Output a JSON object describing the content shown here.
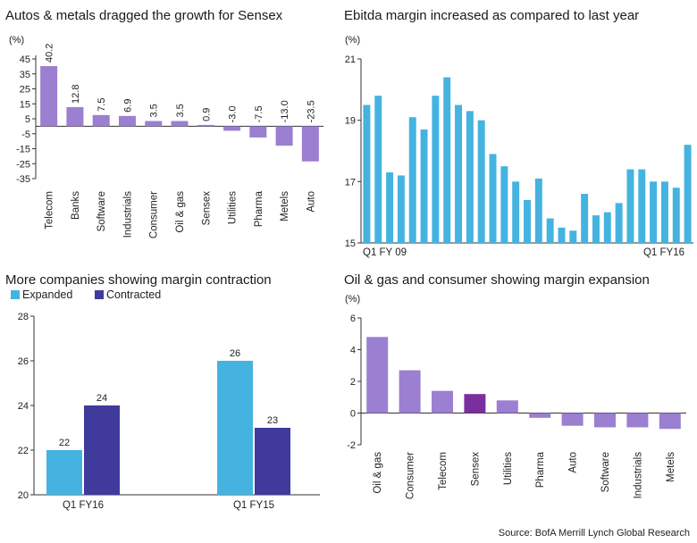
{
  "chart_data": [
    {
      "type": "bar",
      "title": "Autos & metals dragged the growth for Sensex",
      "ylabel": "(%)",
      "ylim": [
        -35,
        45
      ],
      "yticks": [
        45,
        35,
        25,
        15,
        5,
        -5,
        -15,
        -25,
        -35
      ],
      "categories": [
        "Telecom",
        "Banks",
        "Software",
        "Industrials",
        "Consumer",
        "Oil & gas",
        "Sensex",
        "Utilities",
        "Pharma",
        "Metels",
        "Auto"
      ],
      "values": [
        40.2,
        12.8,
        7.5,
        6.9,
        3.5,
        3.5,
        0.9,
        -3.0,
        -7.5,
        -13.0,
        -23.5
      ],
      "data_labels": [
        "40.2",
        "12.8",
        "7.5",
        "6.9",
        "3.5",
        "3.5",
        "0.9",
        "-3.0",
        "-7.5",
        "-13.0",
        "-23.5"
      ],
      "color": "#9b7fd1"
    },
    {
      "type": "bar",
      "title": "Ebitda margin increased as compared to last year",
      "ylabel": "(%)",
      "ylim": [
        15,
        21
      ],
      "yticks": [
        21,
        19,
        17,
        15
      ],
      "x_labels": [
        "Q1 FY 09",
        "Q1 FY16"
      ],
      "values": [
        19.5,
        19.8,
        17.3,
        17.2,
        19.1,
        18.7,
        19.8,
        20.4,
        19.5,
        19.3,
        19.0,
        17.9,
        17.5,
        17.0,
        16.4,
        17.1,
        15.8,
        15.5,
        15.4,
        16.6,
        15.9,
        16.0,
        16.3,
        17.4,
        17.4,
        17.0,
        17.0,
        16.8,
        18.2
      ],
      "color": "#45b3e0"
    },
    {
      "type": "bar",
      "title": "More companies showing margin contraction",
      "ylim": [
        20,
        28
      ],
      "yticks": [
        28,
        26,
        24,
        22,
        20
      ],
      "categories": [
        "Q1 FY16",
        "Q1 FY15"
      ],
      "series": [
        {
          "name": "Expanded",
          "values": [
            22,
            26
          ],
          "color": "#45b3e0"
        },
        {
          "name": "Contracted",
          "values": [
            24,
            23
          ],
          "color": "#3f3a9c"
        }
      ],
      "legend": "top-left"
    },
    {
      "type": "bar",
      "title": "Oil & gas and consumer showing margin expansion",
      "ylabel": "(%)",
      "ylim": [
        -2,
        6
      ],
      "yticks": [
        6,
        4,
        2,
        0,
        -2
      ],
      "categories": [
        "Oil & gas",
        "Consumer",
        "Telecom",
        "Sensex",
        "Utilities",
        "Pharma",
        "Auto",
        "Software",
        "Industrials",
        "Metels"
      ],
      "values": [
        4.8,
        2.7,
        1.4,
        1.2,
        0.8,
        -0.3,
        -0.8,
        -0.9,
        -0.9,
        -1.0
      ],
      "colors": [
        "#9b7fd1",
        "#9b7fd1",
        "#9b7fd1",
        "#7b2f9e",
        "#9b7fd1",
        "#9b7fd1",
        "#9b7fd1",
        "#9b7fd1",
        "#9b7fd1",
        "#9b7fd1"
      ]
    }
  ],
  "source": "Source: BofA Merrill Lynch Global Research"
}
